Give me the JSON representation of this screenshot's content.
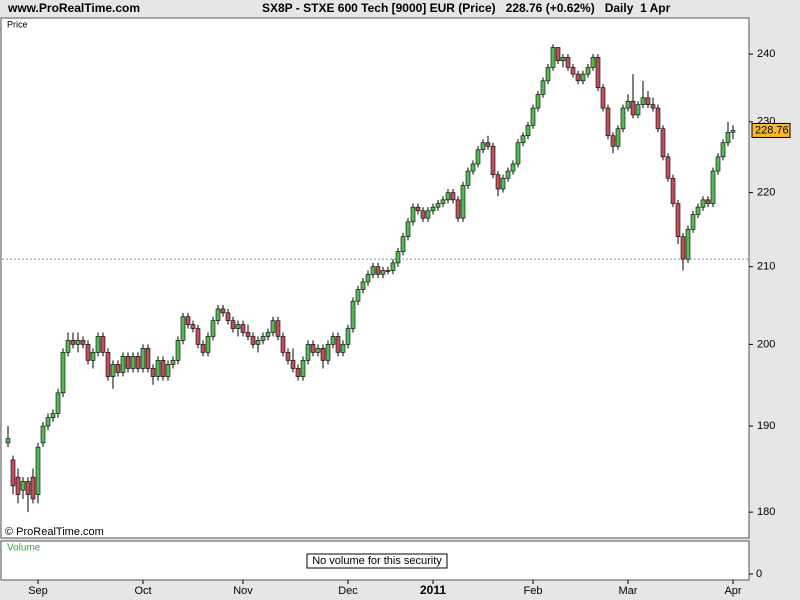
{
  "header": {
    "site": "www.ProRealTime.com",
    "title": "SX8P - STXE 600 Tech [9000] EUR (Price)   228.76 (+0.62%)   Daily  1 Apr"
  },
  "chart_data": {
    "type": "candlestick",
    "panel_label": "Price",
    "copyright": "© ProRealTime.com",
    "log_scale": true,
    "ylim": [
      177.1,
      245.5
    ],
    "yticks": [
      180,
      190,
      200,
      210,
      220,
      230,
      240
    ],
    "up_color": "#55b955",
    "down_color": "#c0505c",
    "ref_line": 211,
    "xticks": [
      {
        "value": 6,
        "label": "Sep"
      },
      {
        "value": 27,
        "label": "Oct"
      },
      {
        "value": 47,
        "label": "Nov"
      },
      {
        "value": 68,
        "label": "Dec"
      },
      {
        "value": 85,
        "label": "2011"
      },
      {
        "value": 105,
        "label": "Feb"
      },
      {
        "value": 124,
        "label": "Mar"
      },
      {
        "value": 145,
        "label": "Apr"
      }
    ],
    "ohlc": [
      [
        188,
        190,
        187.5,
        188.5
      ],
      [
        186,
        186.5,
        182,
        183
      ],
      [
        184,
        185,
        181,
        182
      ],
      [
        182.5,
        184,
        181.5,
        183.5
      ],
      [
        183.5,
        184,
        180,
        182
      ],
      [
        184,
        185,
        181,
        181.5
      ],
      [
        182,
        188,
        181,
        187.5
      ],
      [
        188,
        190.5,
        187.5,
        190
      ],
      [
        190,
        191.5,
        189.5,
        191
      ],
      [
        191,
        192,
        190.5,
        191.5
      ],
      [
        191.5,
        194.5,
        191,
        194
      ],
      [
        194,
        199.5,
        193.5,
        199
      ],
      [
        199,
        201.5,
        198.5,
        200.5
      ],
      [
        200.5,
        201.5,
        199.5,
        200
      ],
      [
        200,
        201.5,
        199,
        200.5
      ],
      [
        200.5,
        201,
        199.5,
        200
      ],
      [
        200,
        200.5,
        197.5,
        198
      ],
      [
        198,
        199.5,
        197,
        199
      ],
      [
        199,
        201.5,
        198.5,
        201
      ],
      [
        201,
        201.5,
        198.5,
        199
      ],
      [
        199,
        199.5,
        195.5,
        196
      ],
      [
        196,
        198,
        194.5,
        197.5
      ],
      [
        197.5,
        198,
        196,
        196.5
      ],
      [
        196.5,
        199,
        196,
        198.5
      ],
      [
        198.5,
        199,
        196.5,
        197
      ],
      [
        197,
        199,
        196.5,
        198.5
      ],
      [
        198.5,
        199,
        196.5,
        197
      ],
      [
        197,
        200,
        196.5,
        199.5
      ],
      [
        199.5,
        200,
        196.5,
        197
      ],
      [
        197,
        197.5,
        195,
        196
      ],
      [
        196,
        198.5,
        195.5,
        198
      ],
      [
        198,
        198.5,
        195.5,
        196
      ],
      [
        196,
        198,
        195.5,
        197.5
      ],
      [
        197.5,
        198.5,
        197,
        198
      ],
      [
        198,
        201,
        197.5,
        200.5
      ],
      [
        200.5,
        204,
        200,
        203.5
      ],
      [
        203.5,
        204,
        202,
        202.5
      ],
      [
        202.5,
        203,
        201.5,
        202
      ],
      [
        202,
        202.5,
        199.5,
        200
      ],
      [
        200,
        200.5,
        198.5,
        199
      ],
      [
        199,
        201.5,
        198.5,
        201
      ],
      [
        201,
        203.5,
        200.5,
        203
      ],
      [
        203,
        205,
        202.5,
        204.5
      ],
      [
        204.5,
        205,
        203.5,
        204
      ],
      [
        204,
        204.5,
        202.5,
        203
      ],
      [
        203,
        203.5,
        201.5,
        202
      ],
      [
        202,
        203,
        201,
        202.5
      ],
      [
        202.5,
        203,
        201,
        201.5
      ],
      [
        201.5,
        202.5,
        200.5,
        201
      ],
      [
        201,
        201.5,
        199.5,
        200
      ],
      [
        200,
        201,
        199,
        200.5
      ],
      [
        200.5,
        201.5,
        200,
        201
      ],
      [
        201,
        202,
        200.5,
        201.5
      ],
      [
        201.5,
        203.5,
        201,
        203
      ],
      [
        203,
        203.5,
        200.5,
        201
      ],
      [
        201,
        201.5,
        198.5,
        199
      ],
      [
        199,
        199.5,
        197.5,
        198
      ],
      [
        198,
        199.5,
        196.5,
        197
      ],
      [
        197,
        197.5,
        195.5,
        196
      ],
      [
        196,
        198.5,
        195.5,
        198
      ],
      [
        198,
        200.5,
        197.5,
        200
      ],
      [
        200,
        200.5,
        198.5,
        199
      ],
      [
        199,
        200,
        198.5,
        199.5
      ],
      [
        199.5,
        200,
        197,
        198
      ],
      [
        198,
        200.5,
        197.5,
        200
      ],
      [
        200,
        201.5,
        199.5,
        201
      ],
      [
        201,
        201.5,
        198.5,
        199
      ],
      [
        199,
        200.5,
        198.5,
        200
      ],
      [
        200,
        202.5,
        199.5,
        202
      ],
      [
        202,
        206,
        201.5,
        205.5
      ],
      [
        205.5,
        207.5,
        205,
        207
      ],
      [
        207,
        208.5,
        206.5,
        208
      ],
      [
        208,
        209.5,
        207.5,
        209
      ],
      [
        209,
        210.5,
        208.5,
        210
      ],
      [
        210,
        210.5,
        208.5,
        209
      ],
      [
        209,
        210,
        208.5,
        209.5
      ],
      [
        209.5,
        210,
        209,
        209.5
      ],
      [
        209.5,
        211,
        209,
        210.5
      ],
      [
        210.5,
        212.5,
        210,
        212
      ],
      [
        212,
        214.5,
        211.5,
        214
      ],
      [
        214,
        216.5,
        213.5,
        216
      ],
      [
        216,
        218.5,
        215.5,
        218
      ],
      [
        218,
        218.5,
        217,
        217.5
      ],
      [
        217.5,
        218,
        216,
        216.5
      ],
      [
        216.5,
        218,
        216,
        217.5
      ],
      [
        217.5,
        218.5,
        217,
        218
      ],
      [
        218,
        219,
        217.5,
        218.5
      ],
      [
        218.5,
        219.5,
        218,
        219
      ],
      [
        219,
        220.5,
        218.5,
        220
      ],
      [
        220,
        220.5,
        218.5,
        219
      ],
      [
        219,
        219.5,
        216,
        216.5
      ],
      [
        216.5,
        221.5,
        216,
        221
      ],
      [
        221,
        223.5,
        220.5,
        223
      ],
      [
        223,
        224.5,
        222.5,
        224
      ],
      [
        224,
        226.5,
        223.5,
        226
      ],
      [
        226,
        227.5,
        225.5,
        227
      ],
      [
        227,
        228,
        226,
        226.5
      ],
      [
        226.5,
        227,
        222,
        222.5
      ],
      [
        222.5,
        223,
        219.5,
        220.5
      ],
      [
        220.5,
        222.5,
        220,
        222
      ],
      [
        222,
        223.5,
        221.5,
        223
      ],
      [
        223,
        224.5,
        222.5,
        224
      ],
      [
        224,
        227.5,
        223.5,
        227
      ],
      [
        227,
        228.5,
        226.5,
        228
      ],
      [
        228,
        230,
        227.5,
        229.5
      ],
      [
        229.5,
        232.5,
        229,
        232
      ],
      [
        232,
        234.5,
        231.5,
        234
      ],
      [
        234,
        236.5,
        233.5,
        236
      ],
      [
        236,
        238.5,
        235.5,
        238
      ],
      [
        238,
        241.5,
        237.5,
        241
      ],
      [
        241,
        241,
        238.5,
        239
      ],
      [
        239,
        240,
        238,
        239.5
      ],
      [
        239.5,
        240,
        237.5,
        238
      ],
      [
        238,
        238.5,
        236.5,
        237
      ],
      [
        237,
        237.5,
        235.5,
        236
      ],
      [
        236,
        237.5,
        235.5,
        237
      ],
      [
        237,
        238.5,
        236.5,
        238
      ],
      [
        238,
        240,
        237.5,
        239.5
      ],
      [
        239.5,
        240,
        234.5,
        235
      ],
      [
        235,
        235.5,
        231.5,
        232
      ],
      [
        232,
        232.5,
        227.5,
        228
      ],
      [
        228,
        228.5,
        225.5,
        226.5
      ],
      [
        226.5,
        229.5,
        226,
        229
      ],
      [
        229,
        232.5,
        228.5,
        232
      ],
      [
        232,
        234,
        231.5,
        233
      ],
      [
        233,
        237,
        230.5,
        231
      ],
      [
        231,
        233,
        230.5,
        232.5
      ],
      [
        232.5,
        236,
        232,
        233.5
      ],
      [
        233.5,
        234.5,
        232,
        232.5
      ],
      [
        232.5,
        233.5,
        231.5,
        232
      ],
      [
        232,
        232.5,
        228.5,
        229
      ],
      [
        229,
        229.5,
        224.5,
        225
      ],
      [
        225,
        225.5,
        221.5,
        222
      ],
      [
        222,
        222.5,
        218,
        218.5
      ],
      [
        218.5,
        219,
        213,
        214
      ],
      [
        214,
        214.5,
        209.5,
        211
      ],
      [
        211,
        215.5,
        210.5,
        215
      ],
      [
        215,
        217.5,
        214.5,
        217
      ],
      [
        217,
        218.5,
        216.5,
        218
      ],
      [
        218,
        219.5,
        217.5,
        219
      ],
      [
        219,
        219.5,
        218,
        218.5
      ],
      [
        218.5,
        223.5,
        218,
        223
      ],
      [
        223,
        225.5,
        222.5,
        225
      ],
      [
        225,
        227.5,
        224.5,
        227
      ],
      [
        227,
        230,
        226.5,
        228.5
      ],
      [
        228.5,
        229.5,
        227.5,
        228.76
      ]
    ],
    "volume": {
      "label": "Volume",
      "note": "No volume for this security",
      "yticks": [
        0
      ]
    }
  }
}
